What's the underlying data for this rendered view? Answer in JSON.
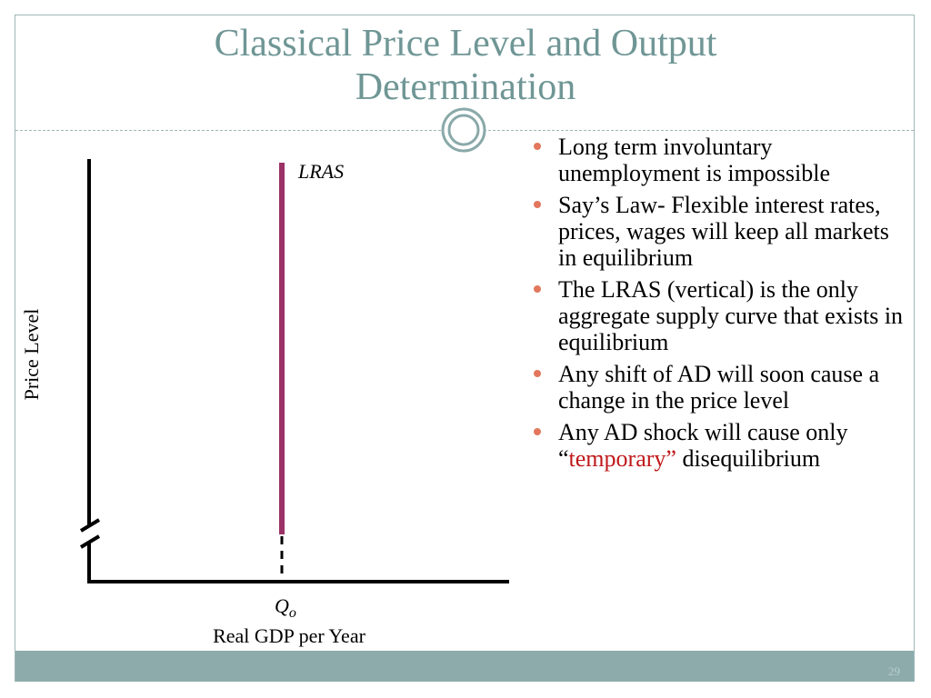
{
  "slide": {
    "title": "Classical Price Level and Output Determination",
    "slide_number": "29"
  },
  "diagram": {
    "y_axis_label": "Price Level",
    "x_axis_label": "Real GDP per Year",
    "curve_label": "LRAS",
    "output_label_base": "Q",
    "output_label_sub": "o"
  },
  "bullets": [
    {
      "text": "Long term involuntary unemployment is impossible"
    },
    {
      "text": "Say’s Law- Flexible interest rates, prices, wages will keep all markets in equilibrium"
    },
    {
      "text": "The LRAS (vertical) is the only aggregate supply curve that exists in equilibrium"
    },
    {
      "text": "Any shift of AD will soon cause a change in the price level"
    },
    {
      "text_before": "Any AD shock will cause only “",
      "highlight": "temporary”",
      "text_after": " disequilibrium"
    }
  ],
  "colors": {
    "title": "#6f9695",
    "lras_curve": "#9b3166",
    "bullet_marker": "#e2775d",
    "highlight": "#c0191b",
    "footer": "#8dabab"
  }
}
